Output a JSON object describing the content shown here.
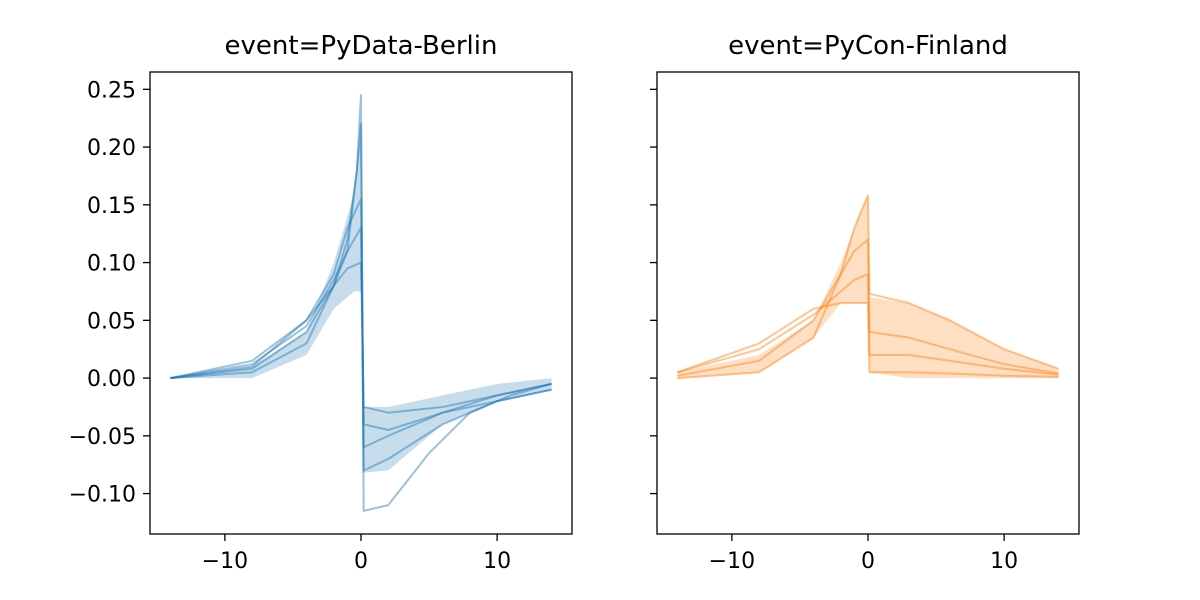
{
  "chart_data": [
    {
      "type": "line",
      "title": "event=PyData-Berlin",
      "color": "#1f77b4",
      "xlim": [
        -15.5,
        15.5
      ],
      "ylim": [
        -0.135,
        0.265
      ],
      "xticks": [
        -10,
        0,
        10
      ],
      "xtick_labels": [
        "−10",
        "0",
        "10"
      ],
      "yticks": [
        0.25,
        0.2,
        0.15,
        0.1,
        0.05,
        0.0,
        -0.05,
        -0.1
      ],
      "ytick_labels": [
        "0.25",
        "0.20",
        "0.15",
        "0.10",
        "0.05",
        "0.00",
        "−0.05",
        "−0.10"
      ],
      "band": {
        "x": [
          -14,
          -8,
          -4,
          -2,
          -0.5,
          0,
          0.1,
          2,
          6,
          10,
          14
        ],
        "lower": [
          0,
          0,
          0.02,
          0.06,
          0.075,
          0.075,
          -0.082,
          -0.08,
          -0.04,
          -0.02,
          -0.01
        ],
        "upper": [
          0,
          0.01,
          0.04,
          0.1,
          0.16,
          0.22,
          -0.025,
          -0.025,
          -0.015,
          -0.005,
          0
        ]
      },
      "series": [
        {
          "x": [
            -14,
            -8,
            -4,
            -2,
            -1,
            -0.3,
            0,
            0.2,
            2,
            5,
            8,
            11,
            14
          ],
          "y": [
            0,
            0.008,
            0.04,
            0.08,
            0.11,
            0.18,
            0.245,
            -0.115,
            -0.11,
            -0.065,
            -0.03,
            -0.015,
            -0.005
          ]
        },
        {
          "x": [
            -14,
            -8,
            -4,
            -2,
            -1,
            -0.3,
            0,
            0.2,
            2,
            6,
            10,
            14
          ],
          "y": [
            0,
            0.005,
            0.03,
            0.08,
            0.12,
            0.18,
            0.22,
            -0.08,
            -0.07,
            -0.04,
            -0.02,
            -0.01
          ]
        },
        {
          "x": [
            -14,
            -8,
            -4,
            -2,
            -1,
            0,
            0.2,
            2,
            6,
            10,
            14
          ],
          "y": [
            0,
            0.01,
            0.05,
            0.09,
            0.13,
            0.155,
            -0.06,
            -0.05,
            -0.03,
            -0.015,
            -0.005
          ]
        },
        {
          "x": [
            -14,
            -8,
            -4,
            -2,
            -1,
            0,
            0.2,
            2,
            6,
            10,
            14
          ],
          "y": [
            0,
            0.012,
            0.045,
            0.085,
            0.11,
            0.13,
            -0.04,
            -0.045,
            -0.03,
            -0.02,
            -0.01
          ]
        },
        {
          "x": [
            -14,
            -8,
            -4,
            -2,
            -1,
            0,
            0.2,
            2,
            6,
            10,
            14
          ],
          "y": [
            0,
            0.015,
            0.05,
            0.08,
            0.095,
            0.1,
            -0.025,
            -0.03,
            -0.025,
            -0.015,
            -0.005
          ]
        }
      ]
    },
    {
      "type": "line",
      "title": "event=PyCon-Finland",
      "color": "#ff7f0e",
      "xlim": [
        -15.5,
        15.5
      ],
      "ylim": [
        -0.135,
        0.265
      ],
      "xticks": [
        -10,
        0,
        10
      ],
      "xtick_labels": [
        "−10",
        "0",
        "10"
      ],
      "yticks": [
        0.25,
        0.2,
        0.15,
        0.1,
        0.05,
        0.0,
        -0.05,
        -0.1
      ],
      "ytick_labels": [],
      "band": {
        "x": [
          -14,
          -8,
          -4,
          -2,
          -0.5,
          0,
          0.1,
          3,
          6,
          10,
          14
        ],
        "lower": [
          0,
          0.005,
          0.035,
          0.065,
          0.065,
          0.065,
          0.005,
          0.0,
          0.0,
          0.0,
          0.0
        ],
        "upper": [
          0.005,
          0.02,
          0.05,
          0.1,
          0.145,
          0.158,
          0.07,
          0.065,
          0.05,
          0.025,
          0.008
        ]
      },
      "series": [
        {
          "x": [
            -14,
            -8,
            -4,
            -2,
            -1,
            -0.3,
            0,
            0.1,
            3,
            6,
            10,
            14
          ],
          "y": [
            0,
            0.005,
            0.035,
            0.09,
            0.13,
            0.15,
            0.158,
            0.073,
            0.065,
            0.05,
            0.025,
            0.008
          ]
        },
        {
          "x": [
            -14,
            -8,
            -4,
            -2,
            -1,
            0,
            0.1,
            3,
            6,
            10,
            14
          ],
          "y": [
            0.002,
            0.015,
            0.05,
            0.09,
            0.11,
            0.12,
            0.04,
            0.035,
            0.025,
            0.012,
            0.004
          ]
        },
        {
          "x": [
            -14,
            -8,
            -4,
            -2,
            -1,
            0,
            0.1,
            3,
            6,
            10,
            14
          ],
          "y": [
            0.005,
            0.025,
            0.055,
            0.075,
            0.085,
            0.09,
            0.02,
            0.02,
            0.015,
            0.008,
            0.003
          ]
        },
        {
          "x": [
            -14,
            -8,
            -4,
            -2,
            -1,
            0,
            0.1,
            3,
            6,
            10,
            14
          ],
          "y": [
            0.005,
            0.03,
            0.06,
            0.065,
            0.065,
            0.065,
            0.005,
            0.005,
            0.004,
            0.002,
            0.001
          ]
        }
      ]
    }
  ]
}
